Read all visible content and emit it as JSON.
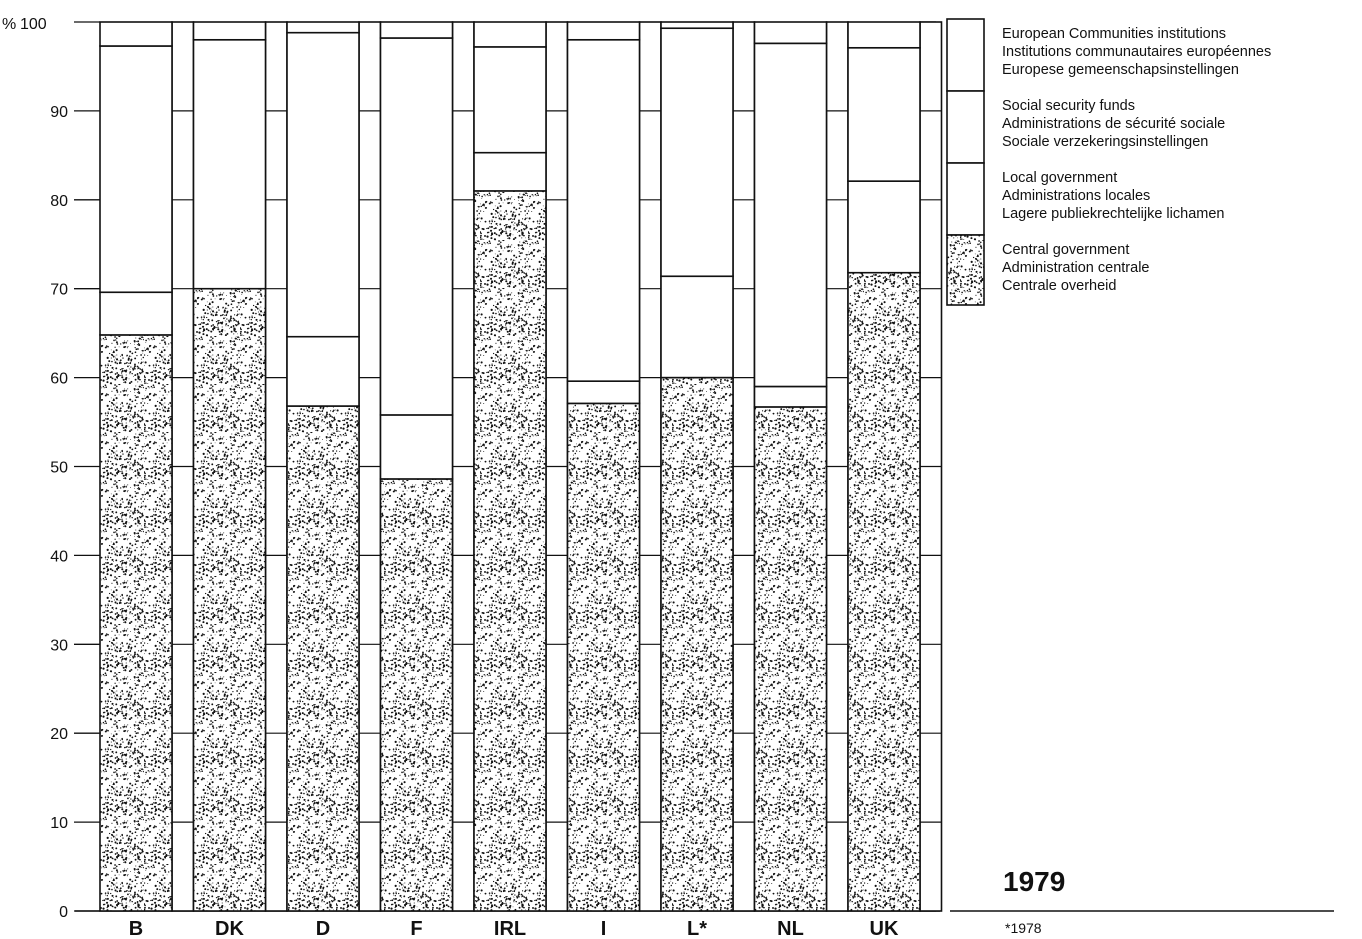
{
  "chart_data": {
    "type": "bar",
    "stacked": true,
    "y_unit_label": "%",
    "ylim": [
      0,
      100
    ],
    "yticks": [
      0,
      10,
      20,
      30,
      40,
      50,
      60,
      70,
      80,
      90,
      100
    ],
    "categories": [
      "B",
      "DK",
      "D",
      "F",
      "IRL",
      "I",
      "L*",
      "NL",
      "UK"
    ],
    "series": [
      {
        "key": "central",
        "name_lines": [
          "Central government",
          "Administration centrale",
          "Centrale overheid"
        ],
        "values": [
          64.8,
          70.0,
          56.8,
          48.6,
          81.0,
          57.1,
          60.0,
          56.7,
          71.8
        ],
        "fill": "stipple"
      },
      {
        "key": "local",
        "name_lines": [
          "Local government",
          "Administrations locales",
          "Lagere publiekrechtelijke lichamen"
        ],
        "values": [
          4.8,
          0.0,
          7.8,
          7.2,
          4.3,
          2.5,
          11.4,
          2.3,
          10.3
        ],
        "fill": "white"
      },
      {
        "key": "social",
        "name_lines": [
          "Social security funds",
          "Administrations de sécurité sociale",
          "Sociale verzekeringsinstellingen"
        ],
        "values": [
          27.7,
          28.0,
          34.2,
          42.4,
          11.9,
          38.4,
          27.9,
          38.6,
          15.0
        ],
        "fill": "white"
      },
      {
        "key": "ec",
        "name_lines": [
          "European Communities institutions",
          "Institutions communautaires européennes",
          "Europese gemeenschapsinstellingen"
        ],
        "values": [
          2.7,
          2.0,
          1.2,
          1.8,
          2.8,
          2.0,
          0.7,
          2.4,
          2.9
        ],
        "fill": "white"
      }
    ],
    "legend_order": [
      "ec",
      "social",
      "local",
      "central"
    ],
    "legend_position": "top-right",
    "year_label": "1979",
    "footnote": "*1978",
    "colors": {
      "ink": "#111111",
      "paper": "#ffffff"
    }
  }
}
